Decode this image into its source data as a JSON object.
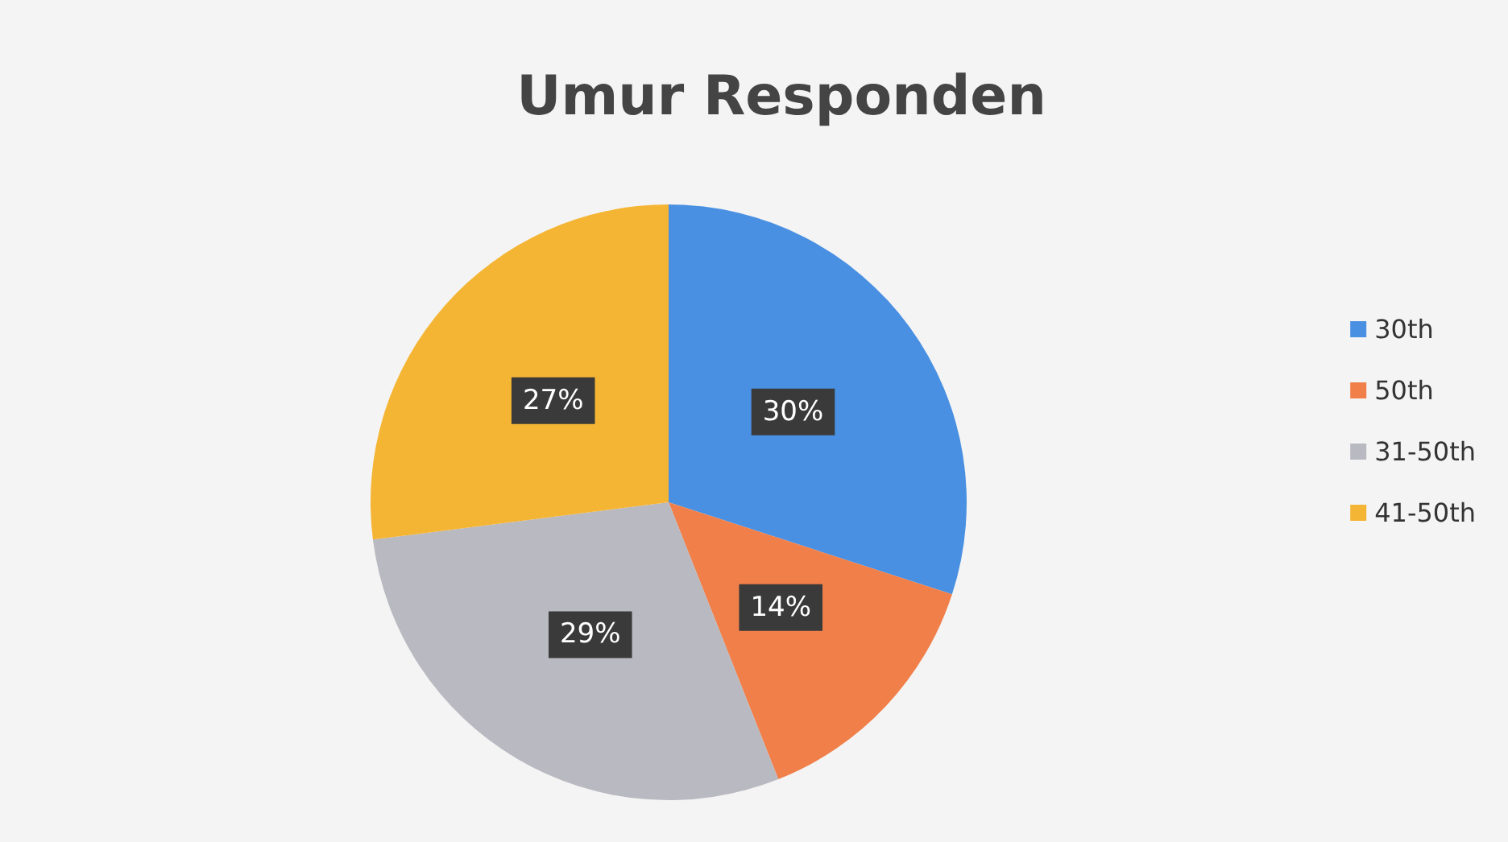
{
  "chart_data": {
    "type": "pie",
    "title": "Umur Responden",
    "categories": [
      "30th",
      "50th",
      "31-50th",
      "41-50th"
    ],
    "values": [
      30,
      14,
      29,
      27
    ],
    "colors": [
      "#4a90e2",
      "#f07f4a",
      "#b9b9c1",
      "#f5b534"
    ],
    "value_labels": [
      "30%",
      "14%",
      "29%",
      "27%"
    ],
    "legend": "right"
  }
}
